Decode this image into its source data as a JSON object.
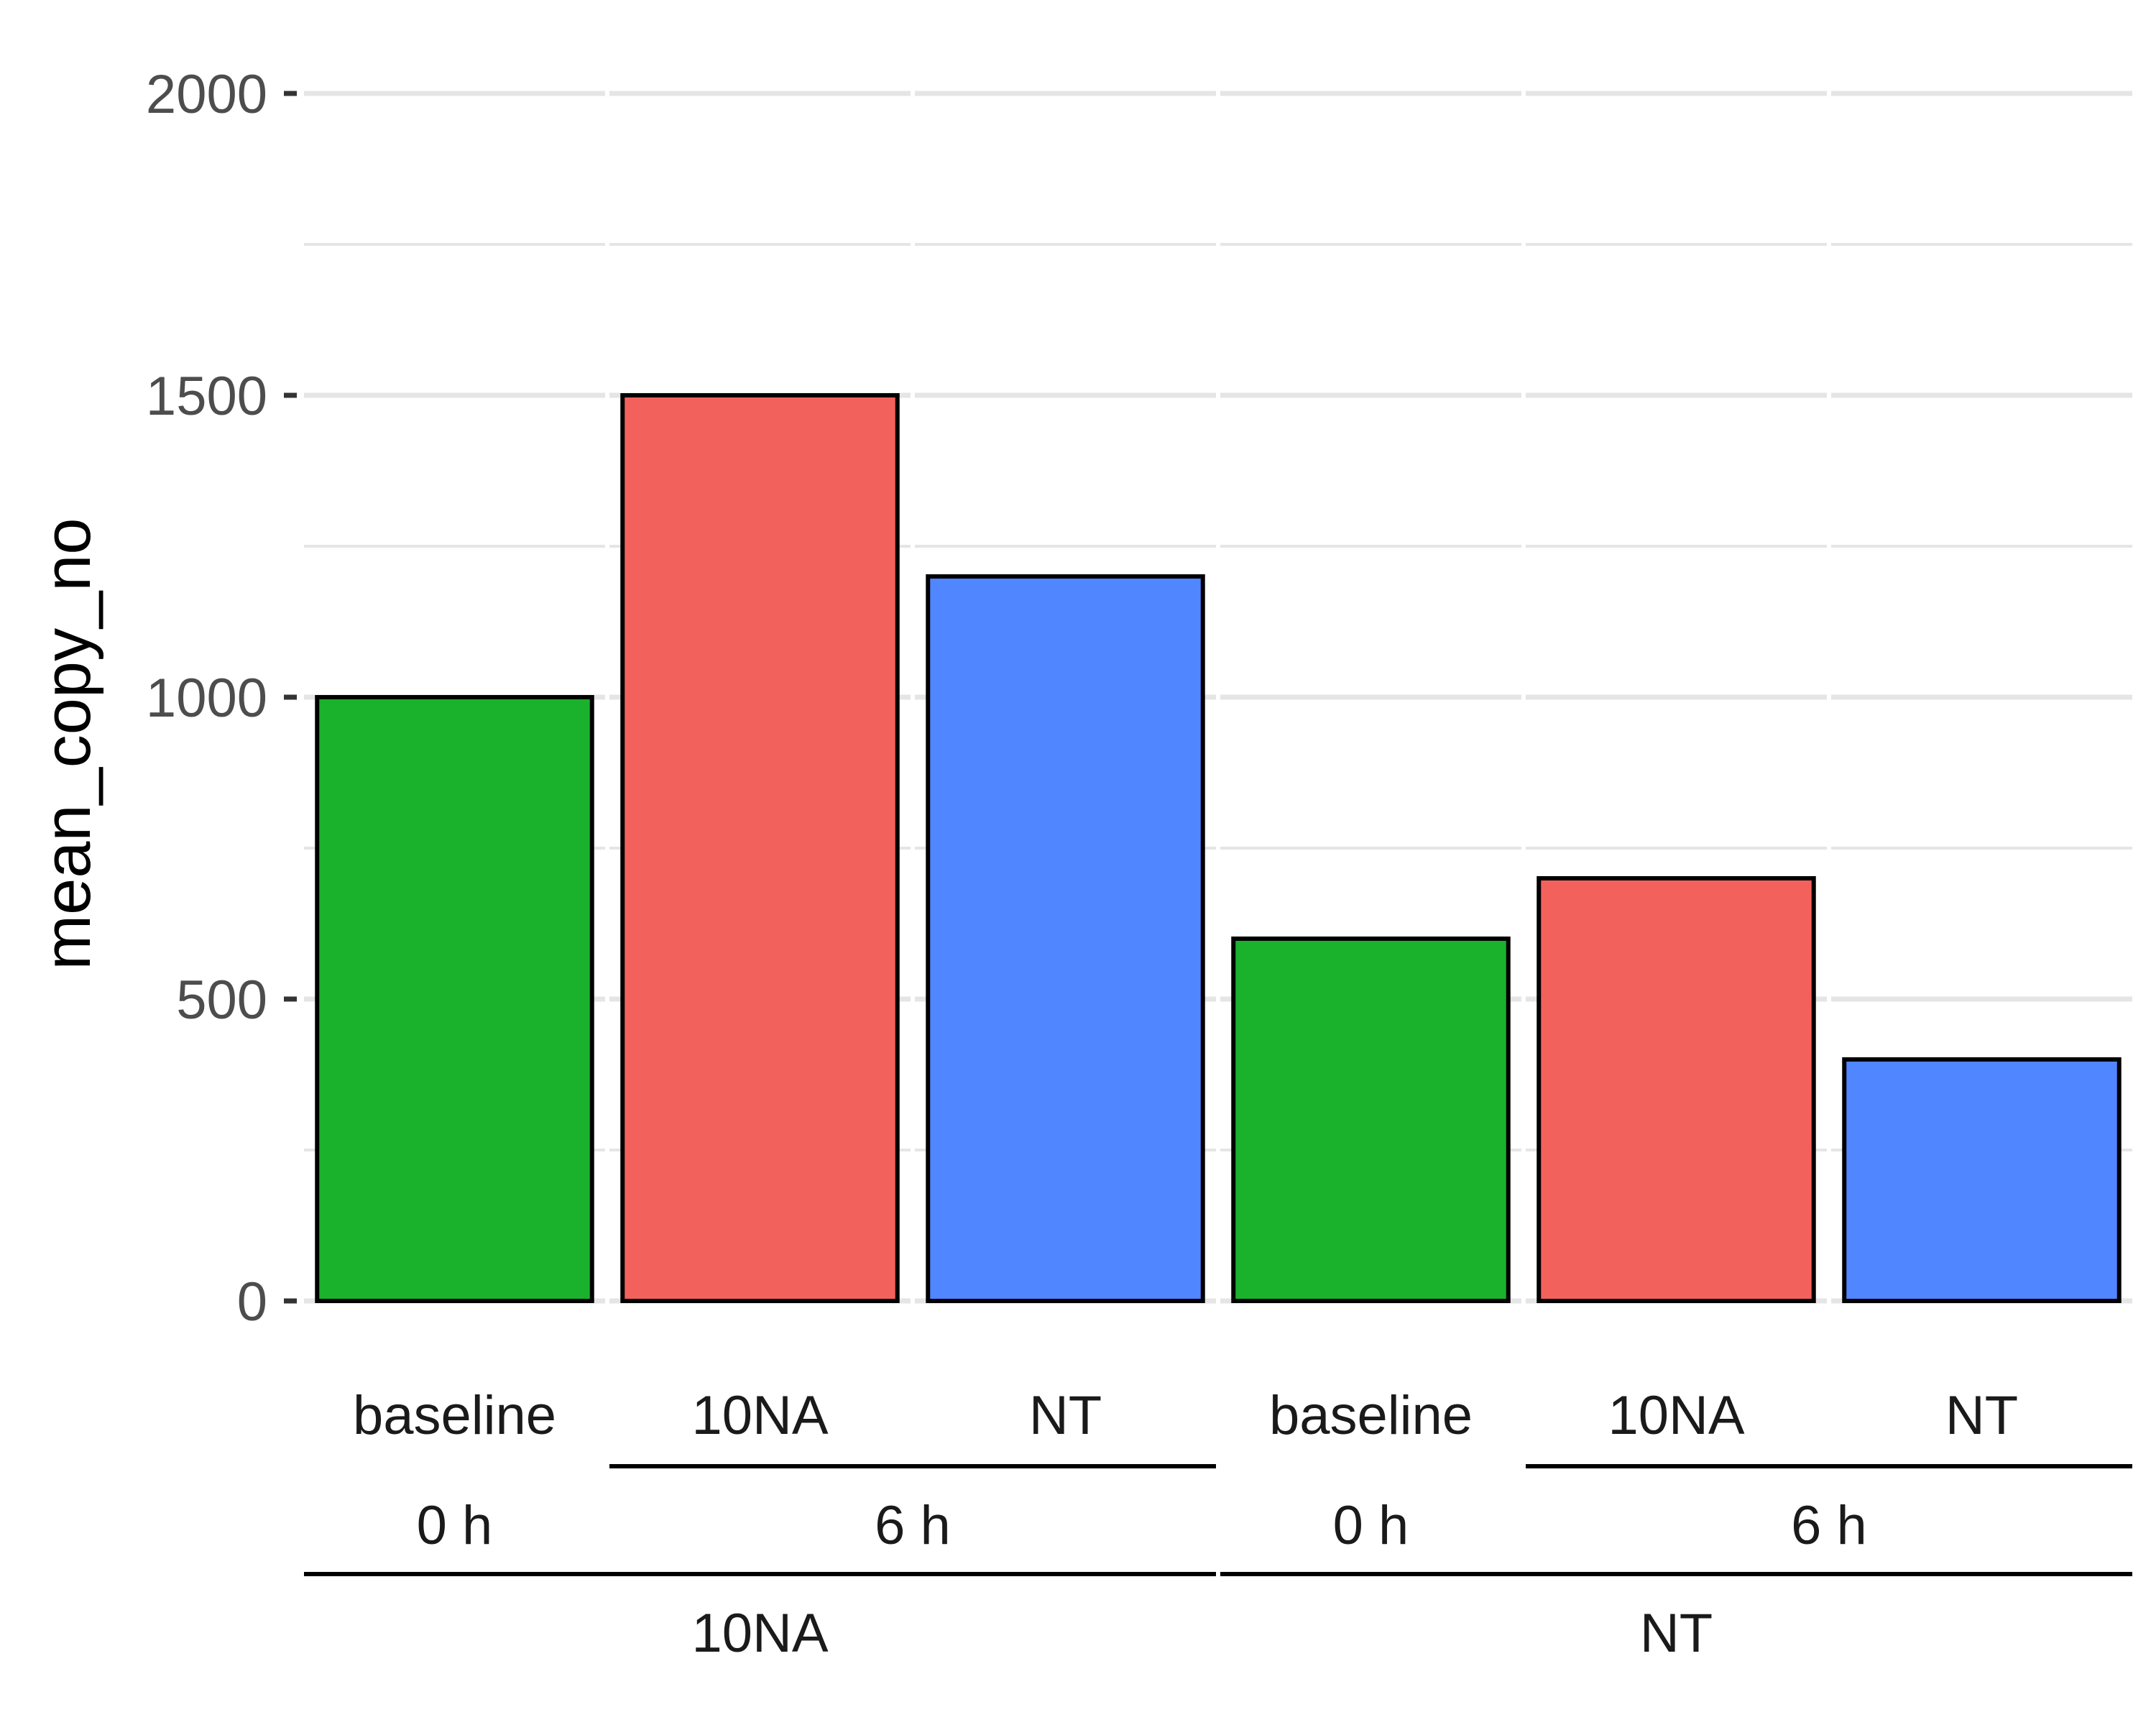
{
  "chart_data": {
    "type": "bar",
    "ylabel": "mean_copy_no",
    "ylim": [
      0,
      2000
    ],
    "y_ticks": [
      0,
      500,
      1000,
      1500,
      2000
    ],
    "grid": true,
    "legend": "none",
    "bars": [
      {
        "label": "baseline",
        "time": "0 h",
        "group": "10NA",
        "value": 1000,
        "color": "#1AB12D"
      },
      {
        "label": "10NA",
        "time": "6 h",
        "group": "10NA",
        "value": 1500,
        "color": "#F3615D"
      },
      {
        "label": "NT",
        "time": "6 h",
        "group": "10NA",
        "value": 1200,
        "color": "#5086FF"
      },
      {
        "label": "baseline",
        "time": "0 h",
        "group": "NT",
        "value": 600,
        "color": "#1AB12D"
      },
      {
        "label": "10NA",
        "time": "6 h",
        "group": "NT",
        "value": 700,
        "color": "#F3615D"
      },
      {
        "label": "NT",
        "time": "6 h",
        "group": "NT",
        "value": 400,
        "color": "#5086FF"
      }
    ],
    "time_labels": [
      {
        "label": "0 h",
        "group": "10NA"
      },
      {
        "label": "6 h",
        "group": "10NA"
      },
      {
        "label": "0 h",
        "group": "NT"
      },
      {
        "label": "6 h",
        "group": "NT"
      }
    ],
    "group_labels": [
      "10NA",
      "NT"
    ]
  }
}
